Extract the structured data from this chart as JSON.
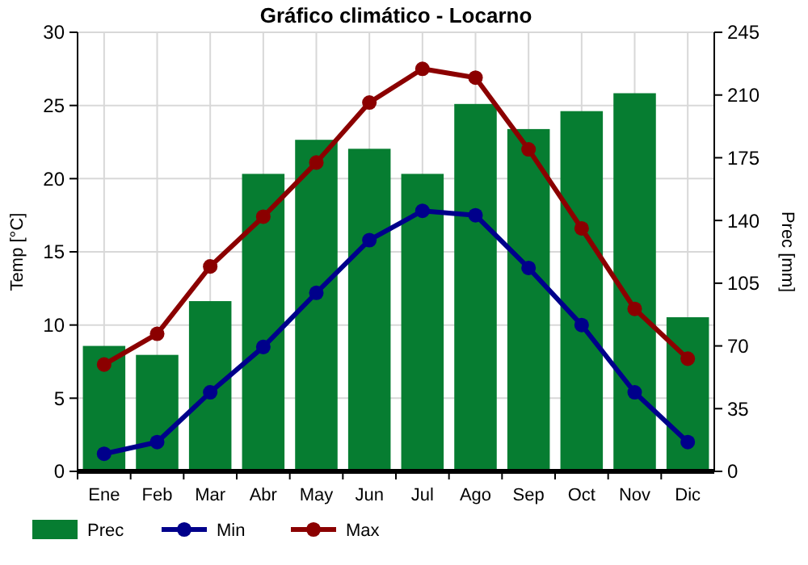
{
  "chart_data": {
    "type": "bar",
    "title": "Gráfico climático - Locarno",
    "ylabel": "Temp [°C]",
    "y2label": "Prec [mm]",
    "categories": [
      "Ene",
      "Feb",
      "Mar",
      "Abr",
      "May",
      "Jun",
      "Jul",
      "Ago",
      "Sep",
      "Oct",
      "Nov",
      "Dic"
    ],
    "series": [
      {
        "name": "Prec",
        "axis": "y2",
        "color": "#067d31",
        "values": [
          70,
          65,
          95,
          166,
          185,
          180,
          166,
          205,
          191,
          201,
          211,
          86
        ]
      },
      {
        "name": "Min",
        "type": "line",
        "axis": "y",
        "color": "#00008b",
        "values": [
          1.2,
          2.0,
          5.4,
          8.5,
          12.2,
          15.8,
          17.8,
          17.5,
          13.9,
          10.0,
          5.4,
          2.0
        ]
      },
      {
        "name": "Max",
        "type": "line",
        "axis": "y",
        "color": "#8b0000",
        "values": [
          7.3,
          9.4,
          14.0,
          17.4,
          21.1,
          25.2,
          27.5,
          26.9,
          22.0,
          16.6,
          11.1,
          7.7
        ]
      }
    ],
    "ylim": [
      0,
      30
    ],
    "yticks": [
      0,
      5,
      10,
      15,
      20,
      25,
      30
    ],
    "y2lim": [
      0,
      245
    ],
    "y2ticks": [
      0,
      35,
      70,
      105,
      140,
      175,
      210,
      245
    ],
    "grid": true,
    "legend": "bottom",
    "marker": "circle",
    "line_style": "solid"
  }
}
